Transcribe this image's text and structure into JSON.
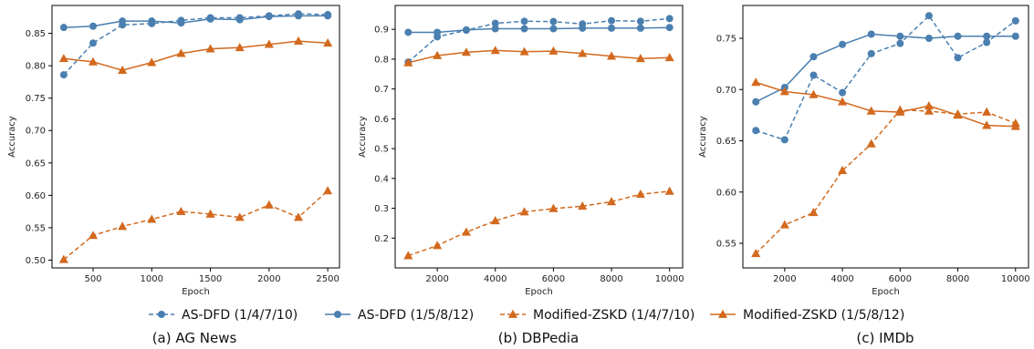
{
  "colors": {
    "blue": "#4a7fb0",
    "orange": "#d2691e"
  },
  "legend": [
    {
      "label": "AS-DFD (1/4/7/10)",
      "color": "#4a7fb0",
      "dash": true,
      "marker": "circle"
    },
    {
      "label": "AS-DFD (1/5/8/12)",
      "color": "#4a7fb0",
      "dash": false,
      "marker": "circle"
    },
    {
      "label": "Modified-ZSKD (1/4/7/10)",
      "color": "#d2691e",
      "dash": true,
      "marker": "triangle"
    },
    {
      "label": "Modified-ZSKD (1/5/8/12)",
      "color": "#d2691e",
      "dash": false,
      "marker": "triangle"
    }
  ],
  "chart_data": [
    {
      "type": "line",
      "caption": "(a) AG News",
      "xlabel": "Epoch",
      "ylabel": "Accuracy",
      "xlim": [
        150,
        2600
      ],
      "ylim": [
        0.488,
        0.893
      ],
      "xticks": [
        500,
        1000,
        1500,
        2000,
        2500
      ],
      "yticks": [
        0.5,
        0.55,
        0.6,
        0.65,
        0.7,
        0.75,
        0.8,
        0.85
      ],
      "ytick_labels": [
        "0.50",
        "0.55",
        "0.60",
        "0.65",
        "0.70",
        "0.75",
        "0.80",
        "0.85"
      ],
      "x": [
        250,
        500,
        750,
        1000,
        1250,
        1500,
        1750,
        2000,
        2250,
        2500
      ],
      "series": [
        {
          "name": "AS-DFD (1/4/7/10)",
          "values": [
            0.786,
            0.835,
            0.863,
            0.865,
            0.87,
            0.874,
            0.874,
            0.877,
            0.88,
            0.879
          ]
        },
        {
          "name": "AS-DFD (1/5/8/12)",
          "values": [
            0.859,
            0.861,
            0.869,
            0.869,
            0.866,
            0.872,
            0.871,
            0.876,
            0.877,
            0.877
          ]
        },
        {
          "name": "Modified-ZSKD (1/4/7/10)",
          "values": [
            0.501,
            0.538,
            0.552,
            0.563,
            0.575,
            0.571,
            0.566,
            0.585,
            0.566,
            0.607
          ]
        },
        {
          "name": "Modified-ZSKD (1/5/8/12)",
          "values": [
            0.811,
            0.806,
            0.793,
            0.805,
            0.819,
            0.826,
            0.828,
            0.833,
            0.838,
            0.835
          ]
        }
      ]
    },
    {
      "type": "line",
      "caption": "(b) DBPedia",
      "xlabel": "Epoch",
      "ylabel": "Accuracy",
      "xlim": [
        550,
        10450
      ],
      "ylim": [
        0.1,
        0.98
      ],
      "xticks": [
        2000,
        4000,
        6000,
        8000,
        10000
      ],
      "yticks": [
        0.2,
        0.3,
        0.4,
        0.5,
        0.6,
        0.7,
        0.8,
        0.9
      ],
      "ytick_labels": [
        "0.2",
        "0.3",
        "0.4",
        "0.5",
        "0.6",
        "0.7",
        "0.8",
        "0.9"
      ],
      "x": [
        1000,
        2000,
        3000,
        4000,
        5000,
        6000,
        7000,
        8000,
        9000,
        10000
      ],
      "series": [
        {
          "name": "AS-DFD (1/4/7/10)",
          "values": [
            0.79,
            0.875,
            0.897,
            0.92,
            0.927,
            0.926,
            0.918,
            0.929,
            0.927,
            0.936
          ]
        },
        {
          "name": "AS-DFD (1/5/8/12)",
          "values": [
            0.89,
            0.89,
            0.898,
            0.902,
            0.902,
            0.902,
            0.904,
            0.904,
            0.904,
            0.906
          ]
        },
        {
          "name": "Modified-ZSKD (1/4/7/10)",
          "values": [
            0.141,
            0.175,
            0.22,
            0.258,
            0.288,
            0.299,
            0.307,
            0.322,
            0.347,
            0.357
          ]
        },
        {
          "name": "Modified-ZSKD (1/5/8/12)",
          "values": [
            0.788,
            0.812,
            0.823,
            0.829,
            0.825,
            0.827,
            0.819,
            0.81,
            0.802,
            0.805
          ]
        }
      ]
    },
    {
      "type": "line",
      "caption": "(c) IMDb",
      "xlabel": "Epoch",
      "ylabel": "Accuracy",
      "xlim": [
        550,
        10450
      ],
      "ylim": [
        0.526,
        0.782
      ],
      "xticks": [
        2000,
        4000,
        6000,
        8000,
        10000
      ],
      "yticks": [
        0.55,
        0.6,
        0.65,
        0.7,
        0.75
      ],
      "ytick_labels": [
        "0.55",
        "0.60",
        "0.65",
        "0.70",
        "0.75"
      ],
      "x": [
        1000,
        2000,
        3000,
        4000,
        5000,
        6000,
        7000,
        8000,
        9000,
        10000
      ],
      "series": [
        {
          "name": "AS-DFD (1/4/7/10)",
          "values": [
            0.66,
            0.651,
            0.714,
            0.697,
            0.735,
            0.745,
            0.772,
            0.731,
            0.746,
            0.767
          ]
        },
        {
          "name": "AS-DFD (1/5/8/12)",
          "values": [
            0.688,
            0.702,
            0.732,
            0.744,
            0.754,
            0.752,
            0.75,
            0.752,
            0.752,
            0.752
          ]
        },
        {
          "name": "Modified-ZSKD (1/4/7/10)",
          "values": [
            0.54,
            0.568,
            0.58,
            0.621,
            0.647,
            0.68,
            0.679,
            0.676,
            0.678,
            0.667
          ]
        },
        {
          "name": "Modified-ZSKD (1/5/8/12)",
          "values": [
            0.707,
            0.698,
            0.695,
            0.688,
            0.679,
            0.678,
            0.684,
            0.675,
            0.665,
            0.664
          ]
        }
      ]
    }
  ]
}
